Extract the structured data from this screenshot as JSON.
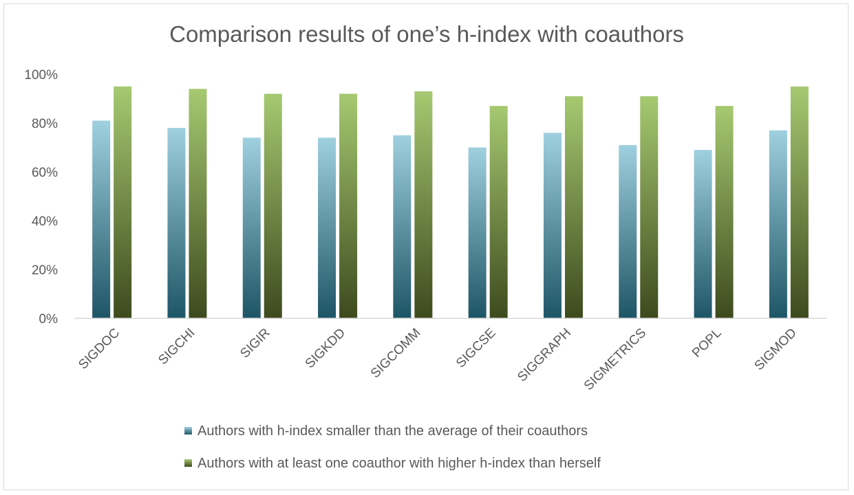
{
  "chart_data": {
    "type": "bar",
    "title": "Comparison results of one’s h-index with coauthors",
    "xlabel": "",
    "ylabel": "",
    "categories": [
      "SIGDOC",
      "SIGCHI",
      "SIGIR",
      "SIGKDD",
      "SIGCOMM",
      "SIGCSE",
      "SIGGRAPH",
      "SIGMETRICS",
      "POPL",
      "SIGMOD"
    ],
    "series": [
      {
        "name": "Authors with h-index smaller than the average of their coauthors",
        "values": [
          81,
          78,
          74,
          74,
          75,
          70,
          76,
          71,
          69,
          77
        ],
        "color_top": "#9fd0df",
        "color_bottom": "#1e5566"
      },
      {
        "name": "Authors with at least one coauthor with higher h-index than herself",
        "values": [
          95,
          94,
          92,
          92,
          93,
          87,
          91,
          91,
          87,
          95
        ],
        "color_top": "#a6c971",
        "color_bottom": "#3d4a1e"
      }
    ],
    "yticks": [
      "0%",
      "20%",
      "40%",
      "60%",
      "80%",
      "100%"
    ],
    "ylim": [
      0,
      100
    ],
    "grid": false,
    "legend_position": "bottom"
  }
}
